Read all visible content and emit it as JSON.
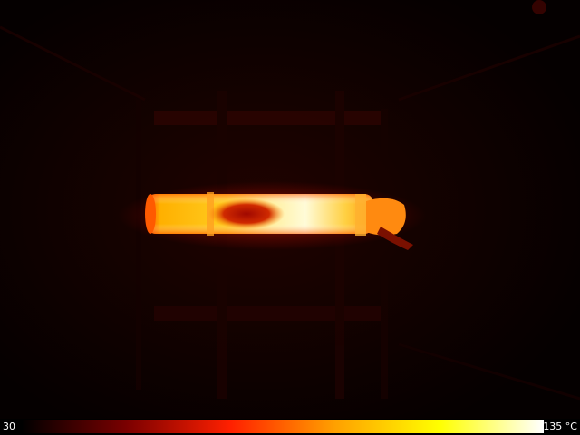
{
  "scale": {
    "min_label": "30",
    "max_label": "135 °C",
    "min_value": 30,
    "max_value": 135,
    "unit": "°C"
  },
  "palette": [
    "#000000",
    "#7a0000",
    "#ff2000",
    "#ffa000",
    "#ffff00",
    "#ffffff"
  ],
  "scene": {
    "subject": "heated-tube-thermal-image",
    "background_color": "#060000",
    "structure_color": "#2a0402",
    "tube_glow_color": "#ff6a00",
    "tube_core_color": "#ffd400",
    "tube_hot_color": "#fffbd0",
    "cool_spot_color": "#b00e00"
  }
}
